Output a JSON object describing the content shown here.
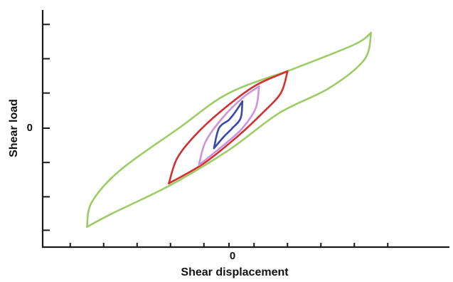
{
  "chart_data": {
    "type": "line",
    "title": "",
    "xlabel": "Shear displacement",
    "ylabel": "Shear load",
    "x_tick_label": "0",
    "y_tick_label": "0",
    "xlim": [
      -11,
      11
    ],
    "ylim": [
      -7,
      7
    ],
    "grid": false,
    "legend": "none",
    "x_minor_ticks": [
      -9.5,
      -7.5,
      -5.5,
      -3.5,
      -1.5,
      0,
      1.5,
      3.5,
      5.5,
      7.5,
      9.5
    ],
    "y_minor_ticks": [
      6.2,
      4.15,
      2.1,
      0,
      -2.05,
      -4.1,
      -6.1
    ],
    "series": [
      {
        "color": "#9ccc65",
        "amplitude_x": 8.5,
        "peak": [
          8.5,
          5.7
        ],
        "trough": [
          -8.5,
          -5.9
        ],
        "upper_branch": [
          [
            -8.5,
            -5.9
          ],
          [
            -8.2,
            -4.4
          ],
          [
            -6.5,
            -2.5
          ],
          [
            -3.0,
            0.0
          ],
          [
            0.0,
            2.1
          ],
          [
            4.0,
            3.6
          ],
          [
            7.5,
            5.0
          ],
          [
            8.5,
            5.7
          ]
        ],
        "lower_branch": [
          [
            8.5,
            5.7
          ],
          [
            8.1,
            4.1
          ],
          [
            6.0,
            2.4
          ],
          [
            3.0,
            0.9
          ],
          [
            0.0,
            -1.3
          ],
          [
            -3.5,
            -3.4
          ],
          [
            -7.0,
            -5.1
          ],
          [
            -8.5,
            -5.9
          ]
        ]
      },
      {
        "color": "#d32f2f",
        "amplitude_x": 3.5,
        "peak": [
          3.5,
          3.4
        ],
        "trough": [
          -3.6,
          -3.3
        ],
        "upper_branch": [
          [
            -3.6,
            -3.3
          ],
          [
            -3.1,
            -1.8
          ],
          [
            -2.0,
            -0.4
          ],
          [
            -0.5,
            1.0
          ],
          [
            1.5,
            2.5
          ],
          [
            3.5,
            3.4
          ]
        ],
        "lower_branch": [
          [
            3.5,
            3.4
          ],
          [
            3.1,
            2.1
          ],
          [
            2.0,
            0.9
          ],
          [
            0.5,
            -0.5
          ],
          [
            -1.5,
            -2.1
          ],
          [
            -3.6,
            -3.3
          ]
        ]
      },
      {
        "color": "#ce93d8",
        "amplitude_x": 1.8,
        "peak": [
          1.8,
          2.5
        ],
        "trough": [
          -1.8,
          -2.2
        ],
        "upper_branch": [
          [
            -1.8,
            -2.2
          ],
          [
            -1.4,
            -0.8
          ],
          [
            -0.4,
            0.6
          ],
          [
            0.8,
            1.8
          ],
          [
            1.8,
            2.5
          ]
        ],
        "lower_branch": [
          [
            1.8,
            2.5
          ],
          [
            1.6,
            1.2
          ],
          [
            0.8,
            0.0
          ],
          [
            -0.3,
            -1.0
          ],
          [
            -1.8,
            -2.2
          ]
        ]
      },
      {
        "color": "#3949ab",
        "amplitude_x": 0.8,
        "peak": [
          0.8,
          1.6
        ],
        "trough": [
          -0.9,
          -1.2
        ],
        "upper_branch": [
          [
            -0.9,
            -1.2
          ],
          [
            -0.6,
            0.0
          ],
          [
            0.0,
            0.5
          ],
          [
            0.4,
            1.0
          ],
          [
            0.8,
            1.6
          ]
        ],
        "lower_branch": [
          [
            0.8,
            1.6
          ],
          [
            0.7,
            0.6
          ],
          [
            0.2,
            0.0
          ],
          [
            -0.3,
            -0.5
          ],
          [
            -0.9,
            -1.2
          ]
        ]
      }
    ]
  }
}
